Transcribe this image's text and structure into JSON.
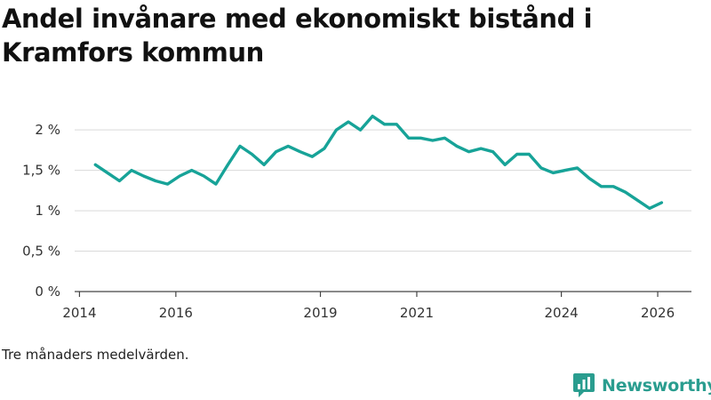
{
  "chart_data": {
    "type": "line",
    "title": "Andel invånare med ekonomiskt bistånd i Kramfors kommun",
    "xlabel": "",
    "ylabel": "",
    "xlim": [
      2013.9,
      2026.7
    ],
    "ylim": [
      0,
      2.2
    ],
    "grid": true,
    "line_color": "#17a398",
    "y_ticks": [
      {
        "value": 0,
        "label": "0 %"
      },
      {
        "value": 0.5,
        "label": "0,5 %"
      },
      {
        "value": 1,
        "label": "1 %"
      },
      {
        "value": 1.5,
        "label": "1,5 %"
      },
      {
        "value": 2,
        "label": "2 %"
      }
    ],
    "x_ticks": [
      {
        "value": 2014,
        "label": "2014"
      },
      {
        "value": 2016,
        "label": "2016"
      },
      {
        "value": 2019,
        "label": "2019"
      },
      {
        "value": 2021,
        "label": "2021"
      },
      {
        "value": 2024,
        "label": "2024"
      },
      {
        "value": 2026,
        "label": "2026"
      }
    ],
    "series": [
      {
        "name": "Andel invånare med ekonomiskt bistånd",
        "x": [
          2014.33,
          2014.58,
          2014.83,
          2015.08,
          2015.33,
          2015.58,
          2015.83,
          2016.08,
          2016.33,
          2016.58,
          2016.83,
          2017.08,
          2017.33,
          2017.58,
          2017.83,
          2018.08,
          2018.33,
          2018.58,
          2018.83,
          2019.08,
          2019.33,
          2019.58,
          2019.83,
          2020.08,
          2020.33,
          2020.58,
          2020.83,
          2021.08,
          2021.33,
          2021.58,
          2021.83,
          2022.08,
          2022.33,
          2022.58,
          2022.83,
          2023.08,
          2023.33,
          2023.58,
          2023.83,
          2024.08,
          2024.33,
          2024.58,
          2024.83,
          2025.08,
          2025.33,
          2025.58,
          2025.83,
          2026.08
        ],
        "values": [
          1.57,
          1.47,
          1.37,
          1.5,
          1.43,
          1.37,
          1.33,
          1.43,
          1.5,
          1.43,
          1.33,
          1.57,
          1.8,
          1.7,
          1.57,
          1.73,
          1.8,
          1.73,
          1.67,
          1.77,
          2.0,
          2.1,
          2.0,
          2.17,
          2.07,
          2.07,
          1.9,
          1.9,
          1.87,
          1.9,
          1.8,
          1.73,
          1.77,
          1.73,
          1.57,
          1.7,
          1.7,
          1.53,
          1.47,
          1.5,
          1.53,
          1.4,
          1.3,
          1.3,
          1.23,
          1.13,
          1.03,
          1.1
        ]
      }
    ]
  },
  "caption": "Tre månaders medelvärden.",
  "brand": {
    "name": "Newsworthy",
    "icon": "newsworthy-logo-icon",
    "color": "#2a9d8f"
  }
}
